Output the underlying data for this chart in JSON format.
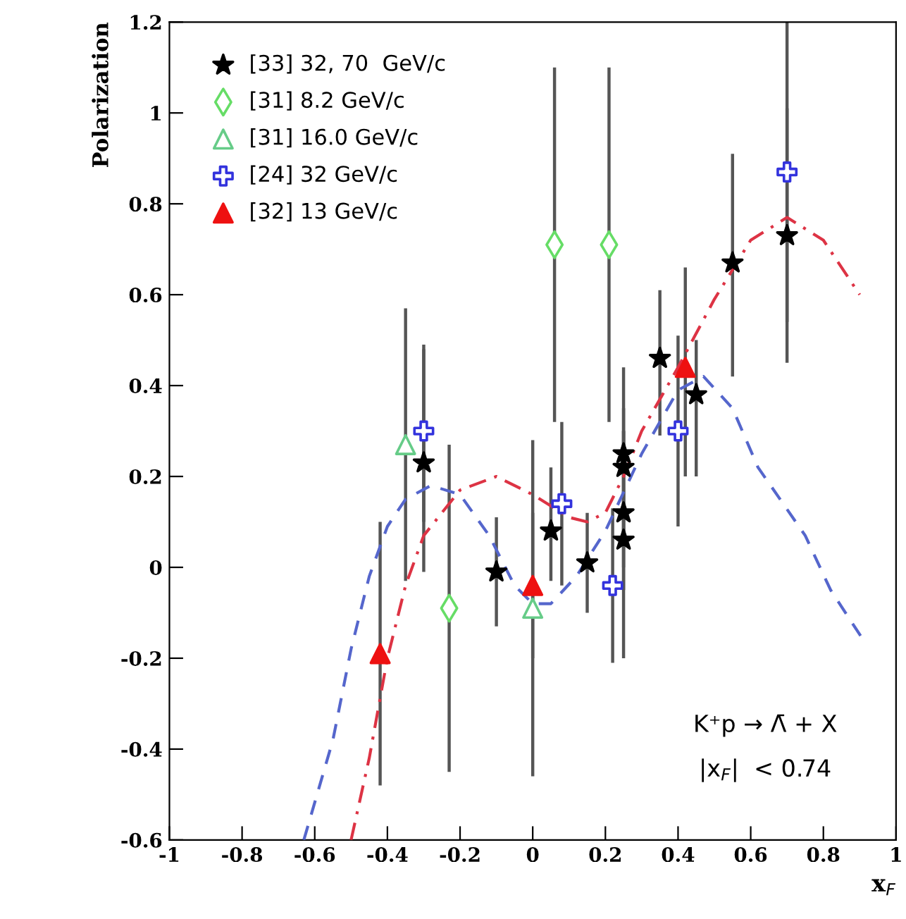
{
  "chart_data": {
    "type": "scatter",
    "xlabel": "x$_{F}$",
    "ylabel": "Polarization",
    "xlim": [
      -1,
      1
    ],
    "ylim": [
      -0.6,
      1.2
    ],
    "xticks": [
      -1,
      -0.8,
      -0.6,
      -0.4,
      -0.2,
      0,
      0.2,
      0.4,
      0.6,
      0.8,
      1
    ],
    "yticks": [
      -0.6,
      -0.4,
      -0.2,
      0,
      0.2,
      0.4,
      0.6,
      0.8,
      1,
      1.2
    ],
    "grid": false,
    "legend": "top left",
    "annotations": [
      "K⁺p → Λ̄ + X",
      "|x$_{F}$|  < 0.74"
    ],
    "series": [
      {
        "name": "[33] 32, 70  GeV/c",
        "marker": "star",
        "color": "#000000",
        "x": [
          -0.3,
          -0.1,
          0.05,
          0.15,
          0.25,
          0.25,
          0.25,
          0.25,
          0.35,
          0.45,
          0.55,
          0.7
        ],
        "values": [
          0.23,
          -0.01,
          0.08,
          0.01,
          0.25,
          0.22,
          0.12,
          0.06,
          0.46,
          0.38,
          0.67,
          0.73
        ],
        "errors": [
          [
            -0.01,
            0.48
          ],
          [
            -0.13,
            0.11
          ],
          [
            -0.03,
            0.22
          ],
          [
            -0.1,
            0.12
          ],
          [
            0.05,
            0.35
          ],
          [
            0.0,
            0.44
          ],
          [
            -0.05,
            0.3
          ],
          [
            -0.2,
            0.3
          ],
          [
            0.29,
            0.61
          ],
          [
            0.2,
            0.5
          ],
          [
            0.42,
            0.91
          ],
          [
            0.45,
            1.2
          ]
        ]
      },
      {
        "name": "[31] 8.2 GeV/c",
        "marker": "diamond",
        "color": "#66dd66",
        "x": [
          -0.23,
          0.06,
          0.21
        ],
        "values": [
          -0.09,
          0.71,
          0.71
        ],
        "errors": [
          [
            -0.45,
            0.27
          ],
          [
            0.32,
            1.1
          ],
          [
            0.32,
            1.1
          ]
        ]
      },
      {
        "name": "[31] 16.0 GeV/c",
        "marker": "triangle",
        "color": "#66cc88",
        "x": [
          -0.35,
          0.0
        ],
        "values": [
          0.27,
          -0.09
        ],
        "errors": [
          [
            -0.03,
            0.57
          ],
          [
            -0.46,
            0.28
          ]
        ]
      },
      {
        "name": "[24] 32 GeV/c",
        "marker": "cross",
        "color": "#3333dd",
        "x": [
          -0.3,
          0.08,
          0.22,
          0.4,
          0.7
        ],
        "values": [
          0.3,
          0.14,
          -0.04,
          0.3,
          0.87
        ],
        "errors": [
          [
            0.1,
            0.49
          ],
          [
            -0.04,
            0.32
          ],
          [
            -0.21,
            0.13
          ],
          [
            0.09,
            0.51
          ],
          [
            0.54,
            1.01
          ]
        ]
      },
      {
        "name": "[32] 13 GeV/c",
        "marker": "triangle",
        "color": "#ee1111",
        "x": [
          -0.42,
          0.0,
          0.42
        ],
        "values": [
          -0.19,
          -0.04,
          0.44
        ],
        "errors": [
          [
            -0.48,
            0.1
          ],
          [
            -0.2,
            0.12
          ],
          [
            0.2,
            0.66
          ]
        ]
      },
      {
        "type": "line",
        "line_style": "dashed",
        "color": "#5566cc",
        "x": [
          -0.63,
          -0.55,
          -0.5,
          -0.45,
          -0.4,
          -0.35,
          -0.28,
          -0.2,
          -0.12,
          -0.05,
          0.0,
          0.05,
          0.12,
          0.2,
          0.3,
          0.4,
          0.47,
          0.55,
          0.62,
          0.75,
          0.82,
          0.91
        ],
        "values": [
          -0.6,
          -0.38,
          -0.18,
          -0.02,
          0.09,
          0.15,
          0.18,
          0.16,
          0.07,
          -0.04,
          -0.08,
          -0.08,
          -0.02,
          0.08,
          0.25,
          0.39,
          0.42,
          0.35,
          0.22,
          0.07,
          -0.05,
          -0.16
        ]
      },
      {
        "type": "line",
        "line_style": "dashdot",
        "color": "#dd3344",
        "x": [
          -0.5,
          -0.45,
          -0.4,
          -0.35,
          -0.3,
          -0.2,
          -0.1,
          0.0,
          0.1,
          0.15,
          0.2,
          0.25,
          0.3,
          0.4,
          0.5,
          0.6,
          0.7,
          0.8,
          0.9
        ],
        "values": [
          -0.6,
          -0.42,
          -0.2,
          -0.04,
          0.07,
          0.17,
          0.2,
          0.16,
          0.11,
          0.1,
          0.12,
          0.2,
          0.3,
          0.44,
          0.59,
          0.72,
          0.77,
          0.72,
          0.6
        ]
      }
    ]
  }
}
